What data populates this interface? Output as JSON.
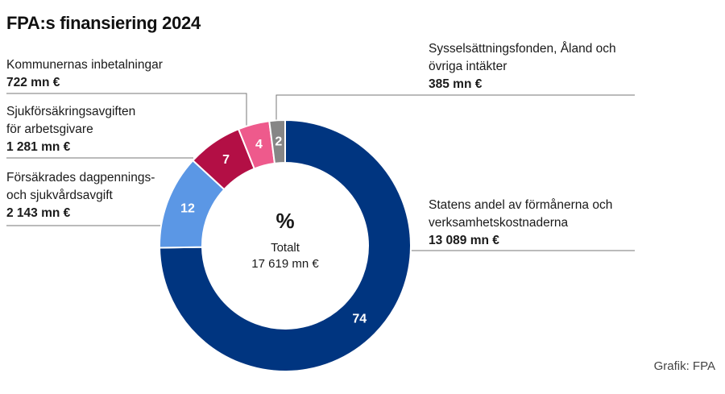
{
  "title": "FPA:s finansiering 2024",
  "source": "Grafik: FPA",
  "chart_data": {
    "type": "pie",
    "title": "FPA:s finansiering 2024",
    "center": {
      "symbol": "%",
      "label": "Totalt",
      "total": "17 619 mn €"
    },
    "slices": [
      {
        "key": "staten",
        "value": 74,
        "label": "74",
        "name": "Statens andel av förmånerna och\nverksamhetskostnaderna",
        "amount": "13 089 mn €",
        "color": "#003580"
      },
      {
        "key": "forsak",
        "value": 12,
        "label": "12",
        "name": "Försäkrades  dagpennings-\noch sjukvårdsavgift",
        "amount": "2 143 mn  €",
        "color": "#5b97e5"
      },
      {
        "key": "sjuk",
        "value": 7,
        "label": "7",
        "name": "Sjukförsäkringsavgiften\nför arbetsgivare",
        "amount": "1 281 mn €",
        "color": "#b30f45"
      },
      {
        "key": "kommun",
        "value": 4,
        "label": "4",
        "name": "Kommunernas inbetalningar",
        "amount": "722 mn €",
        "color": "#ee5a8c"
      },
      {
        "key": "syssel",
        "value": 2,
        "label": "2",
        "name": "Sysselsättningsfonden, Åland och\növriga intäkter",
        "amount": "385 mn €",
        "color": "#868686"
      }
    ]
  }
}
